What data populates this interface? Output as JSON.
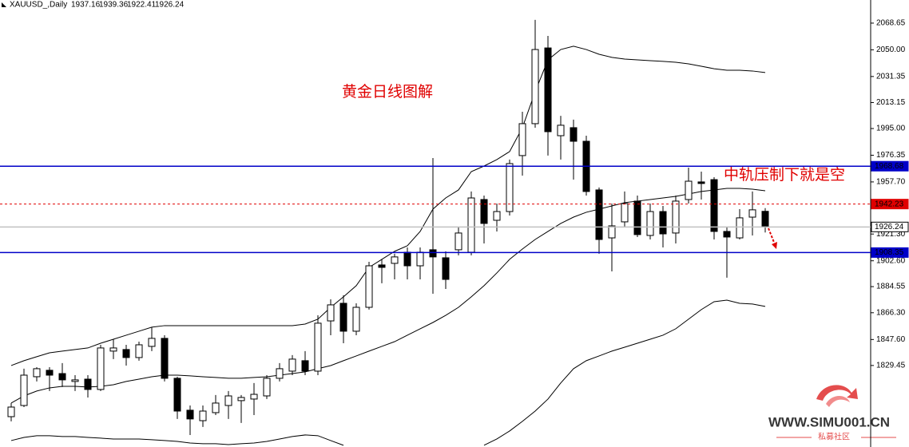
{
  "chart_data": {
    "type": "candlestick",
    "title": "XAUUSD_,Daily",
    "ylim": [
      1772.5,
      2084.8
    ],
    "yticks": [
      2068.65,
      {
        "value": 2050,
        "label": "2050.00"
      },
      2031.35,
      2013.15,
      {
        "value": 1995,
        "label": "1995.00"
      },
      1976.35,
      {
        "value": 1957.7,
        "label": "1957.70"
      },
      {
        "value": 1921.3,
        "label": "1921.30"
      },
      {
        "value": 1902.6,
        "label": "1902.60"
      },
      1884.55,
      {
        "value": 1866.3,
        "label": "1866.30"
      },
      {
        "value": 1847.6,
        "label": "1847.60"
      },
      1829.45
    ],
    "open": [
      1793.7,
      1801.5,
      1821.6,
      1826.1,
      1823.8,
      1818.3,
      1819.9,
      1812.7,
      1839.5,
      1840.6,
      1835.0,
      1842.8,
      1848.4,
      1820.5,
      1798.2,
      1790.9,
      1796.5,
      1801.5,
      1804.9,
      1806.0,
      1808.2,
      1820.5,
      1825.5,
      1832.8,
      1825.5,
      1860.6,
      1872.9,
      1853.4,
      1870.1,
      1899.7,
      1900.8,
      1908.6,
      1899.1,
      1910.3,
      1904.7,
      1910.3,
      1908.6,
      1945.4,
      1930.9,
      1937.0,
      1976.1,
      1998.4,
      2051.3,
      1990.0,
      1995.6,
      1986.1,
      1952.1,
      1918.6,
      1929.8,
      1944.3,
      1920.3,
      1937.0,
      1922.0,
      1945.4,
      1957.7,
      1959.3,
      1923.1,
      1918.6,
      1933.1,
      1937.16
    ],
    "high": [
      1803.2,
      1827.2,
      1828.3,
      1828.3,
      1831.1,
      1822.7,
      1822.7,
      1843.9,
      1847.8,
      1843.9,
      1846.1,
      1856.2,
      1850.6,
      1821.6,
      1801.5,
      1801.5,
      1808.8,
      1811.6,
      1808.8,
      1817.2,
      1822.7,
      1831.1,
      1836.7,
      1839.5,
      1864.5,
      1875.7,
      1878.5,
      1872.9,
      1901.9,
      1903.6,
      1907.5,
      1911.9,
      1911.9,
      1974.4,
      1909.2,
      1925.9,
      1951.0,
      1948.2,
      1942.6,
      1973.3,
      2006.7,
      2070.9,
      2059.7,
      2003.9,
      2001.2,
      1990.0,
      1953.8,
      1942.6,
      1951.0,
      1948.2,
      1942.6,
      1940.9,
      1948.2,
      1967.7,
      1964.9,
      1961.0,
      1925.9,
      1938.7,
      1951.0,
      1939.36
    ],
    "low": [
      1790.4,
      1800.4,
      1818.3,
      1811.6,
      1814.4,
      1811.6,
      1807.1,
      1811.6,
      1833.9,
      1829.4,
      1832.8,
      1839.5,
      1818.3,
      1792.1,
      1780.9,
      1786.5,
      1794.8,
      1792.1,
      1789.3,
      1794.8,
      1806.0,
      1818.3,
      1822.7,
      1822.7,
      1822.7,
      1850.6,
      1845.0,
      1850.6,
      1868.5,
      1886.9,
      1889.6,
      1889.6,
      1889.6,
      1879.6,
      1882.9,
      1906.4,
      1906.4,
      1914.7,
      1923.1,
      1934.2,
      1962.1,
      1995.6,
      1976.1,
      1973.3,
      1959.3,
      1948.2,
      1907.5,
      1895.2,
      1925.9,
      1919.2,
      1917.5,
      1911.9,
      1914.7,
      1942.6,
      1945.4,
      1917.5,
      1890.8,
      1917.5,
      1920.3,
      1922.41
    ],
    "close": [
      1800.4,
      1822.7,
      1827.2,
      1822.7,
      1819.4,
      1819.4,
      1812.7,
      1841.7,
      1841.7,
      1835.0,
      1843.9,
      1848.4,
      1820.5,
      1797.6,
      1792.1,
      1797.6,
      1803.2,
      1808.2,
      1807.1,
      1809.3,
      1820.5,
      1827.2,
      1833.9,
      1825.5,
      1859.0,
      1871.8,
      1853.4,
      1870.1,
      1899.1,
      1898.0,
      1905.3,
      1899.1,
      1908.6,
      1905.3,
      1889.6,
      1922.0,
      1946.5,
      1928.7,
      1937.0,
      1970.5,
      1998.4,
      2050.2,
      1992.8,
      1997.3,
      1986.1,
      1951.0,
      1917.5,
      1927.0,
      1942.6,
      1920.9,
      1937.0,
      1921.4,
      1944.3,
      1958.2,
      1956.6,
      1923.1,
      1919.2,
      1932.6,
      1938.2,
      1926.24
    ],
    "up_color": "#ffffff",
    "down_color": "#000000",
    "lines": [
      {
        "color": "#000000",
        "values": [
          1829.4,
          1832.8,
          1835.6,
          1838.3,
          1839.5,
          1840.6,
          1841.7,
          1845.0,
          1847.8,
          1850.6,
          1853.4,
          1856.2,
          1857.3,
          1857.3,
          1857.3,
          1857.3,
          1857.3,
          1857.3,
          1857.3,
          1857.3,
          1857.3,
          1857.3,
          1857.3,
          1858.4,
          1861.8,
          1870.1,
          1877.4,
          1885.2,
          1898.0,
          1903.6,
          1909.2,
          1913.1,
          1923.1,
          1938.7,
          1946.5,
          1952.1,
          1964.9,
          1968.8,
          1973.3,
          1978.9,
          1995.6,
          2020.7,
          2043.0,
          2050.2,
          2052.5,
          2050.2,
          2046.9,
          2044.7,
          2043.5,
          2043.0,
          2042.4,
          2041.9,
          2041.3,
          2040.2,
          2038.5,
          2036.8,
          2035.7,
          2035.7,
          2035.2,
          2034.1
        ]
      },
      {
        "color": "#000000",
        "values": [
          1803.2,
          1808.2,
          1811.6,
          1813.8,
          1814.9,
          1814.9,
          1814.4,
          1814.9,
          1816.0,
          1818.3,
          1819.9,
          1821.6,
          1822.7,
          1822.7,
          1822.2,
          1821.6,
          1821.1,
          1820.5,
          1820.5,
          1821.1,
          1821.6,
          1822.7,
          1823.8,
          1825.0,
          1827.2,
          1829.4,
          1832.8,
          1836.1,
          1839.5,
          1842.8,
          1846.1,
          1850.6,
          1855.1,
          1859.5,
          1864.5,
          1870.1,
          1877.4,
          1885.2,
          1894.1,
          1903.6,
          1910.8,
          1917.5,
          1923.1,
          1928.7,
          1933.1,
          1936.5,
          1938.7,
          1940.9,
          1943.2,
          1944.3,
          1945.4,
          1946.5,
          1947.6,
          1949.3,
          1951.0,
          1952.1,
          1953.2,
          1953.2,
          1952.6,
          1951.5
        ]
      },
      {
        "color": "#000000",
        "values": [
          1777.0,
          1779.2,
          1780.4,
          1780.4,
          1779.8,
          1779.8,
          1779.2,
          1778.7,
          1778.1,
          1778.1,
          1778.1,
          1777.6,
          1777.0,
          1776.4,
          1775.3,
          1774.8,
          1774.8,
          1774.2,
          1774.8,
          1775.3,
          1776.4,
          1778.1,
          1779.8,
          1780.9,
          1780.4,
          1777.0,
          1773.7,
          null,
          null,
          null,
          null,
          null,
          null,
          null,
          null,
          null,
          null,
          1773.7,
          1778.1,
          1783.7,
          1790.4,
          1797.6,
          1806.0,
          1817.2,
          1827.2,
          1832.8,
          1836.1,
          1839.5,
          1842.2,
          1845.0,
          1847.8,
          1850.6,
          1855.1,
          1861.8,
          1868.5,
          1874.0,
          1875.1,
          1872.9,
          1872.4,
          1870.7
        ]
      }
    ],
    "levels": [
      {
        "value": 1968.68,
        "color": "#0000c8",
        "style": "solid"
      },
      {
        "value": 1942.23,
        "color": "#e00000",
        "style": "dashed"
      },
      {
        "value": 1926.24,
        "color": "#c0c0c0",
        "style": "solid"
      },
      {
        "value": 1908.35,
        "color": "#0000c8",
        "style": "solid"
      }
    ],
    "annotations": [
      "黄金日线图解",
      "中轨压制下就是空"
    ],
    "watermark": {
      "text": "WWW.SIMU001.CN",
      "subtext": "私募社区"
    }
  }
}
